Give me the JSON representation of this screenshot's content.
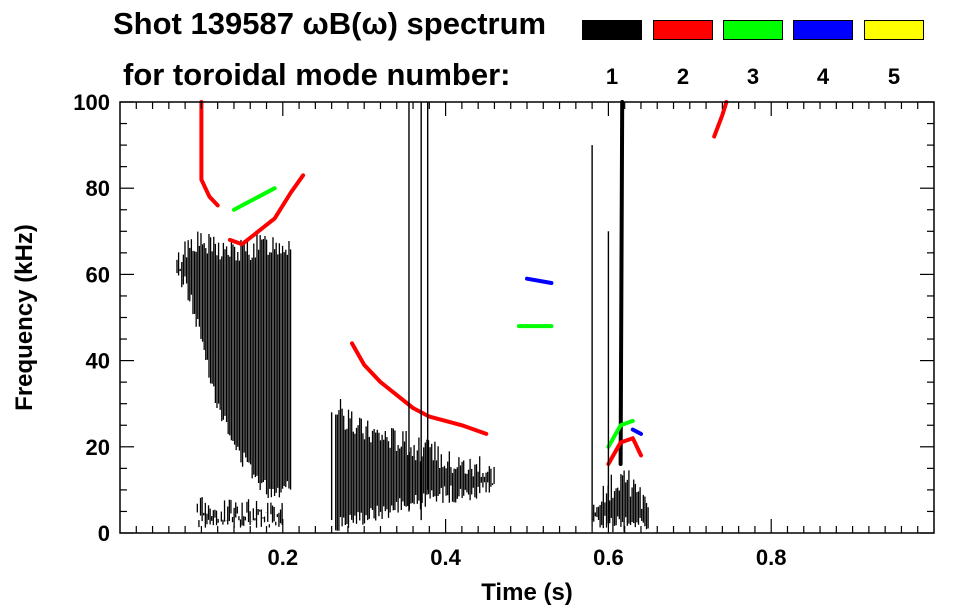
{
  "chart_data": {
    "type": "heatmap",
    "title_line1": "Shot 139587 ωB(ω) spectrum",
    "title_line2": "for toroidal mode number:",
    "xlabel": "Time (s)",
    "ylabel": "Frequency (kHz)",
    "xlim": [
      0.0,
      1.0
    ],
    "ylim": [
      0,
      100
    ],
    "xticks": [
      0.2,
      0.4,
      0.6,
      0.8
    ],
    "xtick_labels": [
      "0.2",
      "0.4",
      "0.6",
      "0.8"
    ],
    "yticks": [
      0,
      20,
      40,
      60,
      80,
      100
    ],
    "ytick_labels": [
      "0",
      "20",
      "40",
      "60",
      "80",
      "100"
    ],
    "legend": [
      {
        "label": "1",
        "color": "#000000"
      },
      {
        "label": "2",
        "color": "#ff0000"
      },
      {
        "label": "3",
        "color": "#00ff00"
      },
      {
        "label": "4",
        "color": "#0000ff"
      },
      {
        "label": "5",
        "color": "#ffff00"
      }
    ],
    "series": [
      {
        "name": "n=1 broadband early",
        "mode": 1,
        "kind": "band",
        "points": [
          [
            0.07,
            62,
            60
          ],
          [
            0.08,
            66,
            58
          ],
          [
            0.09,
            68,
            52
          ],
          [
            0.1,
            67,
            45
          ],
          [
            0.12,
            66,
            30
          ],
          [
            0.14,
            65,
            20
          ],
          [
            0.16,
            66,
            15
          ],
          [
            0.18,
            67,
            10
          ],
          [
            0.2,
            67,
            10
          ],
          [
            0.21,
            67,
            12
          ]
        ]
      },
      {
        "name": "n=1 low frequency early",
        "mode": 1,
        "kind": "band",
        "points": [
          [
            0.095,
            5,
            3
          ],
          [
            0.11,
            6,
            3
          ],
          [
            0.12,
            5,
            3
          ],
          [
            0.18,
            5,
            3
          ],
          [
            0.2,
            4,
            3
          ]
        ]
      },
      {
        "name": "n=2 chirp up",
        "mode": 2,
        "kind": "line",
        "points": [
          [
            0.135,
            68
          ],
          [
            0.15,
            67
          ],
          [
            0.17,
            70
          ],
          [
            0.19,
            73
          ],
          [
            0.21,
            79
          ],
          [
            0.225,
            83
          ]
        ]
      },
      {
        "name": "n=2 early high",
        "mode": 2,
        "kind": "line",
        "points": [
          [
            0.1,
            100
          ],
          [
            0.1,
            82
          ],
          [
            0.11,
            78
          ],
          [
            0.12,
            76
          ]
        ]
      },
      {
        "name": "n=3 early",
        "mode": 3,
        "kind": "line",
        "points": [
          [
            0.14,
            75
          ],
          [
            0.15,
            76
          ],
          [
            0.17,
            78
          ],
          [
            0.19,
            80
          ]
        ]
      },
      {
        "name": "n=1 mid broadband",
        "mode": 1,
        "kind": "band",
        "points": [
          [
            0.265,
            30,
            1
          ],
          [
            0.28,
            26,
            3
          ],
          [
            0.3,
            24,
            4
          ],
          [
            0.32,
            23,
            5
          ],
          [
            0.34,
            22,
            6
          ],
          [
            0.36,
            20,
            7
          ],
          [
            0.38,
            19,
            8
          ],
          [
            0.4,
            17,
            9
          ],
          [
            0.42,
            16,
            9
          ],
          [
            0.44,
            15,
            10
          ],
          [
            0.46,
            14,
            10
          ]
        ]
      },
      {
        "name": "n=2 chirp down",
        "mode": 2,
        "kind": "line",
        "points": [
          [
            0.285,
            44
          ],
          [
            0.3,
            39
          ],
          [
            0.32,
            35
          ],
          [
            0.34,
            32
          ],
          [
            0.36,
            29
          ],
          [
            0.38,
            27
          ],
          [
            0.4,
            26
          ],
          [
            0.42,
            25
          ],
          [
            0.45,
            23
          ]
        ]
      },
      {
        "name": "n=1 late burst",
        "mode": 1,
        "kind": "band",
        "points": [
          [
            0.58,
            5,
            3
          ],
          [
            0.6,
            10,
            2
          ],
          [
            0.615,
            13,
            2
          ],
          [
            0.63,
            11,
            2
          ],
          [
            0.65,
            6,
            2
          ]
        ]
      },
      {
        "name": "n=1 late spike",
        "mode": 1,
        "kind": "line",
        "points": [
          [
            0.615,
            16
          ],
          [
            0.617,
            100
          ]
        ]
      },
      {
        "name": "n=2 late",
        "mode": 2,
        "kind": "line",
        "points": [
          [
            0.6,
            16
          ],
          [
            0.615,
            21
          ],
          [
            0.63,
            22
          ],
          [
            0.64,
            18
          ]
        ]
      },
      {
        "name": "n=3 late",
        "mode": 3,
        "kind": "line",
        "points": [
          [
            0.6,
            20
          ],
          [
            0.615,
            25
          ],
          [
            0.63,
            26
          ]
        ]
      },
      {
        "name": "n=4 late",
        "mode": 4,
        "kind": "line",
        "points": [
          [
            0.63,
            24
          ],
          [
            0.64,
            23
          ]
        ]
      },
      {
        "name": "n=3 mid",
        "mode": 3,
        "kind": "line",
        "points": [
          [
            0.49,
            48
          ],
          [
            0.51,
            48
          ],
          [
            0.53,
            48
          ]
        ]
      },
      {
        "name": "n=4 mid",
        "mode": 4,
        "kind": "line",
        "points": [
          [
            0.5,
            59
          ],
          [
            0.53,
            58
          ]
        ]
      },
      {
        "name": "n=2 late high",
        "mode": 2,
        "kind": "line",
        "points": [
          [
            0.73,
            92
          ],
          [
            0.74,
            97
          ],
          [
            0.745,
            100
          ]
        ]
      }
    ]
  }
}
